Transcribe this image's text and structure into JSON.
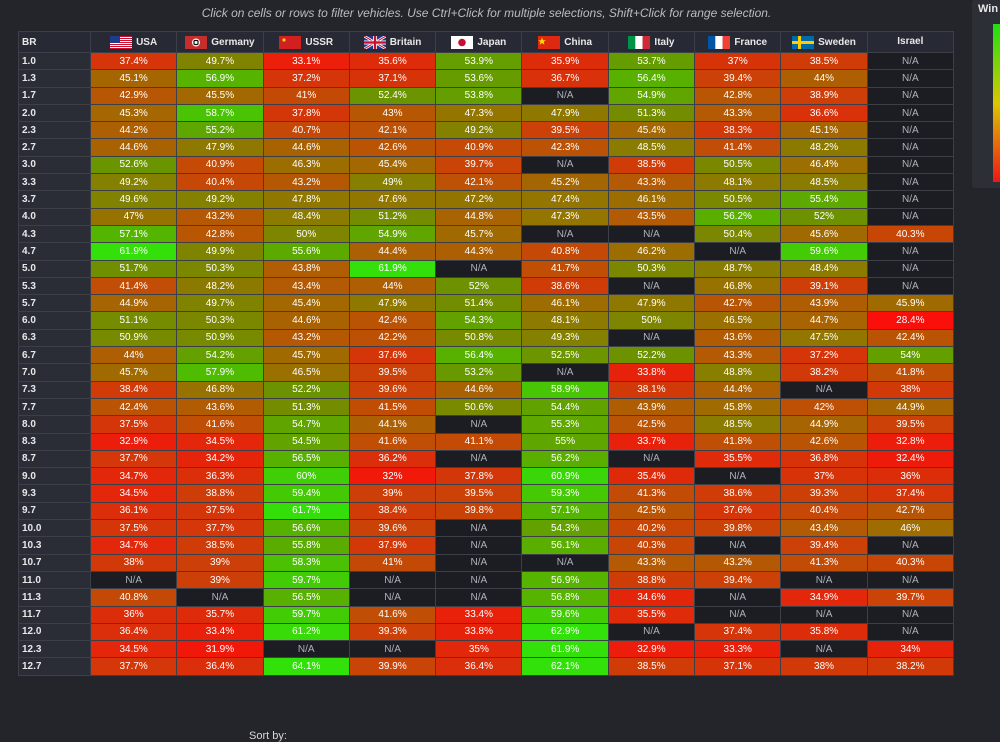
{
  "hint": "Click on cells or rows to filter vehicles. Use Ctrl+Click for multiple selections, Shift+Click for range selection.",
  "legend": {
    "title": "Win"
  },
  "sort_label": "Sort by:",
  "table": {
    "br_header": "BR",
    "nations": [
      {
        "name": "USA",
        "flag": "usa-flag-icon"
      },
      {
        "name": "Germany",
        "flag": "germany-flag-icon"
      },
      {
        "name": "USSR",
        "flag": "ussr-flag-icon"
      },
      {
        "name": "Britain",
        "flag": "britain-flag-icon"
      },
      {
        "name": "Japan",
        "flag": "japan-flag-icon"
      },
      {
        "name": "China",
        "flag": "china-flag-icon"
      },
      {
        "name": "Italy",
        "flag": "italy-flag-icon"
      },
      {
        "name": "France",
        "flag": "france-flag-icon"
      },
      {
        "name": "Sweden",
        "flag": "sweden-flag-icon"
      },
      {
        "name": "Israel",
        "flag": ""
      }
    ],
    "rows": [
      {
        "br": "1.0",
        "values": [
          "37.4%",
          "49.7%",
          "33.1%",
          "35.6%",
          "53.9%",
          "35.9%",
          "53.7%",
          "37%",
          "38.5%",
          "N/A"
        ]
      },
      {
        "br": "1.3",
        "values": [
          "45.1%",
          "56.9%",
          "37.2%",
          "37.1%",
          "53.6%",
          "36.7%",
          "56.4%",
          "39.4%",
          "44%",
          "N/A"
        ]
      },
      {
        "br": "1.7",
        "values": [
          "42.9%",
          "45.5%",
          "41%",
          "52.4%",
          "53.8%",
          "N/A",
          "54.9%",
          "42.8%",
          "38.9%",
          "N/A"
        ]
      },
      {
        "br": "2.0",
        "values": [
          "45.3%",
          "58.7%",
          "37.8%",
          "43%",
          "47.3%",
          "47.9%",
          "51.3%",
          "43.3%",
          "36.6%",
          "N/A"
        ]
      },
      {
        "br": "2.3",
        "values": [
          "44.2%",
          "55.2%",
          "40.7%",
          "42.1%",
          "49.2%",
          "39.5%",
          "45.4%",
          "38.3%",
          "45.1%",
          "N/A"
        ]
      },
      {
        "br": "2.7",
        "values": [
          "44.6%",
          "47.9%",
          "44.6%",
          "42.6%",
          "40.9%",
          "42.3%",
          "48.5%",
          "41.4%",
          "48.2%",
          "N/A"
        ]
      },
      {
        "br": "3.0",
        "values": [
          "52.6%",
          "40.9%",
          "46.3%",
          "45.4%",
          "39.7%",
          "N/A",
          "38.5%",
          "50.5%",
          "46.4%",
          "N/A"
        ]
      },
      {
        "br": "3.3",
        "values": [
          "49.2%",
          "40.4%",
          "43.2%",
          "49%",
          "42.1%",
          "45.2%",
          "43.3%",
          "48.1%",
          "48.5%",
          "N/A"
        ]
      },
      {
        "br": "3.7",
        "values": [
          "49.6%",
          "49.2%",
          "47.8%",
          "47.6%",
          "47.2%",
          "47.4%",
          "46.1%",
          "50.5%",
          "55.4%",
          "N/A"
        ]
      },
      {
        "br": "4.0",
        "values": [
          "47%",
          "43.2%",
          "48.4%",
          "51.2%",
          "44.8%",
          "47.3%",
          "43.5%",
          "56.2%",
          "52%",
          "N/A"
        ]
      },
      {
        "br": "4.3",
        "values": [
          "57.1%",
          "42.8%",
          "50%",
          "54.9%",
          "45.7%",
          "N/A",
          "N/A",
          "50.4%",
          "45.6%",
          "40.3%"
        ]
      },
      {
        "br": "4.7",
        "values": [
          "61.9%",
          "49.9%",
          "55.6%",
          "44.4%",
          "44.3%",
          "40.8%",
          "46.2%",
          "N/A",
          "59.6%",
          "N/A"
        ]
      },
      {
        "br": "5.0",
        "values": [
          "51.7%",
          "50.3%",
          "43.8%",
          "61.9%",
          "N/A",
          "41.7%",
          "50.3%",
          "48.7%",
          "48.4%",
          "N/A"
        ]
      },
      {
        "br": "5.3",
        "values": [
          "41.4%",
          "48.2%",
          "43.4%",
          "44%",
          "52%",
          "38.6%",
          "N/A",
          "46.8%",
          "39.1%",
          "N/A"
        ]
      },
      {
        "br": "5.7",
        "values": [
          "44.9%",
          "49.7%",
          "45.4%",
          "47.9%",
          "51.4%",
          "46.1%",
          "47.9%",
          "42.7%",
          "43.9%",
          "45.9%"
        ]
      },
      {
        "br": "6.0",
        "values": [
          "51.1%",
          "50.3%",
          "44.6%",
          "42.4%",
          "54.3%",
          "48.1%",
          "50%",
          "46.5%",
          "44.7%",
          "28.4%"
        ]
      },
      {
        "br": "6.3",
        "values": [
          "50.9%",
          "50.9%",
          "43.2%",
          "42.2%",
          "50.8%",
          "49.3%",
          "N/A",
          "43.6%",
          "47.5%",
          "42.4%"
        ]
      },
      {
        "br": "6.7",
        "values": [
          "44%",
          "54.2%",
          "45.7%",
          "37.6%",
          "56.4%",
          "52.5%",
          "52.2%",
          "43.3%",
          "37.2%",
          "54%"
        ]
      },
      {
        "br": "7.0",
        "values": [
          "45.7%",
          "57.9%",
          "46.5%",
          "39.5%",
          "53.2%",
          "N/A",
          "33.8%",
          "48.8%",
          "38.2%",
          "41.8%"
        ]
      },
      {
        "br": "7.3",
        "values": [
          "38.4%",
          "46.8%",
          "52.2%",
          "39.6%",
          "44.6%",
          "58.9%",
          "38.1%",
          "44.4%",
          "N/A",
          "38%"
        ]
      },
      {
        "br": "7.7",
        "values": [
          "42.4%",
          "43.6%",
          "51.3%",
          "41.5%",
          "50.6%",
          "54.4%",
          "43.9%",
          "45.8%",
          "42%",
          "44.9%"
        ]
      },
      {
        "br": "8.0",
        "values": [
          "37.5%",
          "41.6%",
          "54.7%",
          "44.1%",
          "N/A",
          "55.3%",
          "42.5%",
          "48.5%",
          "44.9%",
          "39.5%"
        ]
      },
      {
        "br": "8.3",
        "values": [
          "32.9%",
          "34.5%",
          "54.5%",
          "41.6%",
          "41.1%",
          "55%",
          "33.7%",
          "41.8%",
          "42.6%",
          "32.8%"
        ]
      },
      {
        "br": "8.7",
        "values": [
          "37.7%",
          "34.2%",
          "56.5%",
          "36.2%",
          "N/A",
          "56.2%",
          "N/A",
          "35.5%",
          "36.8%",
          "32.4%"
        ]
      },
      {
        "br": "9.0",
        "values": [
          "34.7%",
          "36.3%",
          "60%",
          "32%",
          "37.8%",
          "60.9%",
          "35.4%",
          "N/A",
          "37%",
          "36%"
        ]
      },
      {
        "br": "9.3",
        "values": [
          "34.5%",
          "38.8%",
          "59.4%",
          "39%",
          "39.5%",
          "59.3%",
          "41.3%",
          "38.6%",
          "39.3%",
          "37.4%"
        ]
      },
      {
        "br": "9.7",
        "values": [
          "36.1%",
          "37.5%",
          "61.7%",
          "38.4%",
          "39.8%",
          "57.1%",
          "42.5%",
          "37.6%",
          "40.4%",
          "42.7%"
        ]
      },
      {
        "br": "10.0",
        "values": [
          "37.5%",
          "37.7%",
          "56.6%",
          "39.6%",
          "N/A",
          "54.3%",
          "40.2%",
          "39.8%",
          "43.4%",
          "46%"
        ]
      },
      {
        "br": "10.3",
        "values": [
          "34.7%",
          "38.5%",
          "55.8%",
          "37.9%",
          "N/A",
          "56.1%",
          "40.3%",
          "N/A",
          "39.4%",
          "N/A"
        ]
      },
      {
        "br": "10.7",
        "values": [
          "38%",
          "39%",
          "58.3%",
          "41%",
          "N/A",
          "N/A",
          "43.3%",
          "43.2%",
          "41.3%",
          "40.3%"
        ]
      },
      {
        "br": "11.0",
        "values": [
          "N/A",
          "39%",
          "59.7%",
          "N/A",
          "N/A",
          "56.9%",
          "38.8%",
          "39.4%",
          "N/A",
          "N/A"
        ]
      },
      {
        "br": "11.3",
        "values": [
          "40.8%",
          "N/A",
          "56.5%",
          "N/A",
          "N/A",
          "56.8%",
          "34.6%",
          "N/A",
          "34.9%",
          "39.7%"
        ]
      },
      {
        "br": "11.7",
        "values": [
          "36%",
          "35.7%",
          "59.7%",
          "41.6%",
          "33.4%",
          "59.6%",
          "35.5%",
          "N/A",
          "N/A",
          "N/A"
        ]
      },
      {
        "br": "12.0",
        "values": [
          "36.4%",
          "33.4%",
          "61.2%",
          "39.3%",
          "33.8%",
          "62.9%",
          "N/A",
          "37.4%",
          "35.8%",
          "N/A"
        ]
      },
      {
        "br": "12.3",
        "values": [
          "34.5%",
          "31.9%",
          "N/A",
          "N/A",
          "35%",
          "61.9%",
          "32.9%",
          "33.3%",
          "N/A",
          "34%"
        ]
      },
      {
        "br": "12.7",
        "values": [
          "37.7%",
          "36.4%",
          "64.1%",
          "39.9%",
          "36.4%",
          "62.1%",
          "38.5%",
          "37.1%",
          "38%",
          "38.2%"
        ]
      }
    ]
  }
}
